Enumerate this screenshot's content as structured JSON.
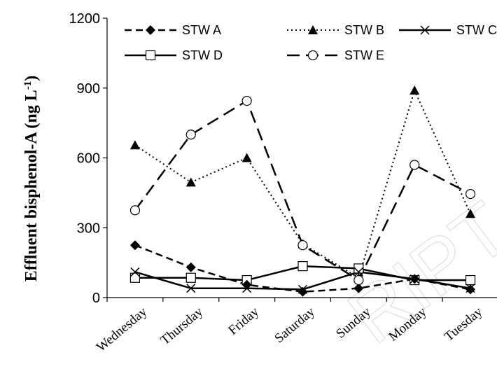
{
  "chart_data": {
    "type": "line",
    "title": "",
    "ylabel_main": "Effluent bisphenol-A (ng L",
    "ylabel_sup": "-1",
    "ylabel_close": ")",
    "xlabel": "",
    "ylim": [
      0,
      1200
    ],
    "yticks": [
      "0",
      "300",
      "600",
      "900",
      "1200"
    ],
    "categories": [
      "Wednesday",
      "Thursday",
      "Friday",
      "Saturday",
      "Sunday",
      "Monday",
      "Tuesday"
    ],
    "legend_position": "top",
    "series": [
      {
        "name": "STW A",
        "marker": "diamond",
        "dash": "dashed",
        "values": [
          225,
          130,
          55,
          25,
          40,
          80,
          35
        ]
      },
      {
        "name": "STW B",
        "marker": "triangle",
        "dash": "dotted",
        "values": [
          655,
          495,
          600,
          230,
          85,
          890,
          360
        ]
      },
      {
        "name": "STW C",
        "marker": "cross",
        "dash": "solid",
        "values": [
          110,
          40,
          40,
          35,
          110,
          80,
          40
        ]
      },
      {
        "name": "STW D",
        "marker": "square",
        "dash": "solid",
        "values": [
          85,
          85,
          75,
          135,
          125,
          75,
          75
        ]
      },
      {
        "name": "STW E",
        "marker": "circle",
        "dash": "longdash",
        "values": [
          375,
          700,
          845,
          225,
          75,
          570,
          445
        ]
      }
    ],
    "grid": false,
    "watermark": "RIPT"
  }
}
